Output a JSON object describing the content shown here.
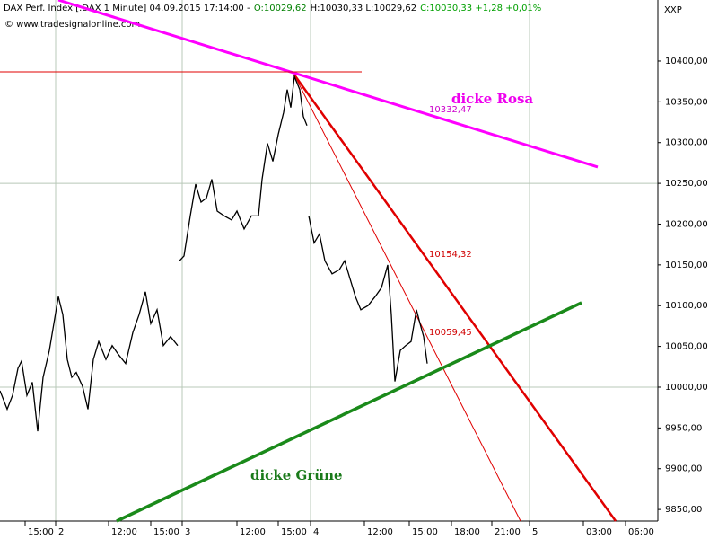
{
  "chart_data": {
    "type": "line",
    "header": [
      {
        "text": "DAX Perf. Index [.DAX  1 Minute] 04.09.2015 17:14:00 -",
        "color": "#000000"
      },
      {
        "text": "O:10029,62",
        "color": "#008000"
      },
      {
        "text": "H:10030,33 L:10029,62",
        "color": "#000000"
      },
      {
        "text": "C:10030,33 +1,28 +0,01%",
        "color": "#00a000"
      }
    ],
    "source": "© www.tradesignalonline.com",
    "axis_code": "XXP",
    "xlim": [
      0,
      733
    ],
    "ylim": [
      9835.8,
      10474.9
    ],
    "yticks": [
      {
        "value": 9850,
        "label": "9850,00"
      },
      {
        "value": 9900,
        "label": "9900,00"
      },
      {
        "value": 9950,
        "label": "9950,00"
      },
      {
        "value": 10000,
        "label": "10000,00"
      },
      {
        "value": 10050,
        "label": "10050,00"
      },
      {
        "value": 10100,
        "label": "10100,00"
      },
      {
        "value": 10150,
        "label": "10150,00"
      },
      {
        "value": 10200,
        "label": "10200,00"
      },
      {
        "value": 10250,
        "label": "10250,00"
      },
      {
        "value": 10300,
        "label": "10300,00"
      },
      {
        "value": 10350,
        "label": "10350,00"
      },
      {
        "value": 10400,
        "label": "10400,00"
      }
    ],
    "xticks": [
      {
        "value": 28,
        "label": "15:00"
      },
      {
        "value": 62,
        "label": "2"
      },
      {
        "value": 121,
        "label": "12:00"
      },
      {
        "value": 168,
        "label": "15:00"
      },
      {
        "value": 203,
        "label": "3"
      },
      {
        "value": 264,
        "label": "12:00"
      },
      {
        "value": 310,
        "label": "15:00"
      },
      {
        "value": 346,
        "label": "4"
      },
      {
        "value": 406,
        "label": "12:00"
      },
      {
        "value": 456,
        "label": "15:00"
      },
      {
        "value": 503,
        "label": "18:00"
      },
      {
        "value": 548,
        "label": "21:00"
      },
      {
        "value": 590,
        "label": "5"
      },
      {
        "value": 650,
        "label": "03:00"
      },
      {
        "value": 697,
        "label": "06:00"
      }
    ],
    "ygrid": [
      10000,
      10250
    ],
    "xgrid": [
      62,
      203,
      346,
      590
    ],
    "series": [
      {
        "color": "#000000",
        "x": [
          0,
          8,
          14,
          20,
          24,
          30,
          36,
          42,
          48,
          55,
          60,
          65,
          70,
          75,
          80,
          85,
          92,
          98,
          104,
          110,
          118,
          125,
          132,
          140,
          148,
          155,
          162,
          168,
          175,
          182,
          190,
          198,
          null,
          200,
          205,
          212,
          218,
          224,
          230,
          236,
          242,
          250,
          258,
          264,
          272,
          280,
          288,
          292,
          298,
          304,
          310,
          316,
          320,
          324,
          328,
          334,
          338,
          342,
          null,
          344,
          350,
          356,
          362,
          370,
          378,
          384,
          390,
          396,
          402,
          410,
          418,
          425,
          432,
          436,
          440,
          446,
          452,
          458,
          464,
          468,
          472,
          476
        ],
        "values": [
          9995.6,
          9973,
          9990,
          10023,
          10032,
          9990,
          10006,
          9946,
          10012,
          10045,
          10078,
          10111,
          10089,
          10034,
          10012,
          10018,
          10001,
          9973,
          10034,
          10056,
          10034,
          10051,
          10040,
          10029,
          10067,
          10089,
          10117,
          10078,
          10095,
          10051,
          10062,
          10051,
          null,
          10155,
          10161,
          10210,
          10249,
          10227,
          10232,
          10255,
          10216,
          10210,
          10205,
          10216,
          10194,
          10210,
          10210,
          10255,
          10299,
          10277,
          10310,
          10337,
          10365,
          10343,
          10381,
          10365,
          10332,
          10321,
          null,
          10210,
          10177,
          10188,
          10155,
          10139,
          10144,
          10155,
          10133,
          10111,
          10095,
          10100,
          10111,
          10122,
          10150,
          10089,
          10007,
          10045,
          10051,
          10056,
          10095,
          10078,
          10062,
          10029
        ]
      }
    ],
    "trendlines": [
      {
        "color": "#ff00ff",
        "width": 3,
        "x": [
          65,
          666
        ],
        "y": [
          10474.9,
          10270
        ]
      },
      {
        "color": "#e00000",
        "width": 1,
        "x": [
          0,
          403
        ],
        "y": [
          10386.8,
          10386.8
        ]
      },
      {
        "color": "#e00000",
        "width": 2.5,
        "x": [
          328,
          686
        ],
        "y": [
          10383,
          9835.8
        ]
      },
      {
        "color": "#e00000",
        "width": 1,
        "x": [
          328,
          580
        ],
        "y": [
          10383,
          9835.8
        ]
      },
      {
        "color": "#1a8a1a",
        "width": 3.5,
        "x": [
          130,
          648
        ],
        "y": [
          9835.8,
          10103.6
        ]
      }
    ],
    "annotations": [
      "dicke Rosa",
      "10332,47",
      "10154,32",
      "10059,45",
      "dicke Grüne"
    ]
  }
}
